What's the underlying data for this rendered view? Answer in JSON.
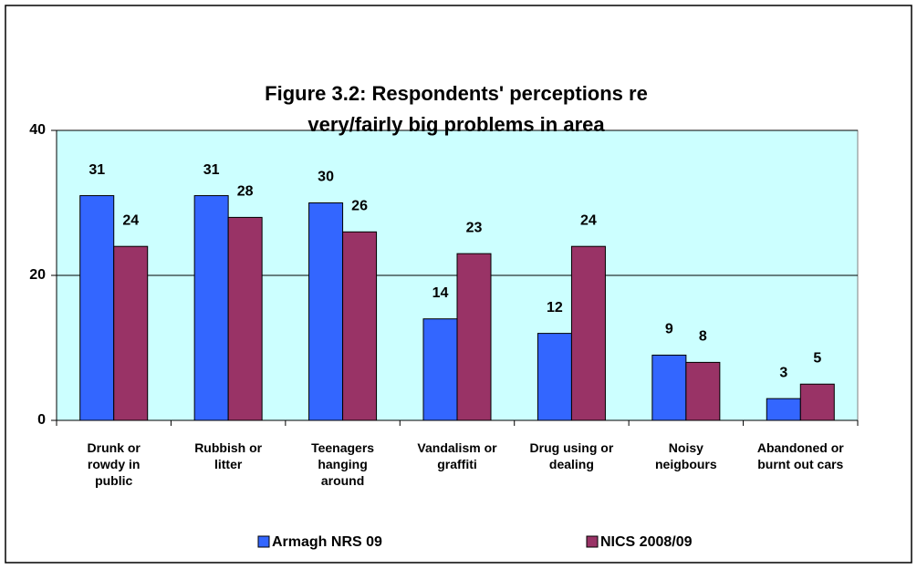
{
  "chart_data": {
    "type": "bar",
    "title": "Figure 3.2: Respondents' perceptions re very/fairly big problems in area",
    "categories": [
      "Drunk or rowdy in public",
      "Rubbish or litter",
      "Teenagers hanging around",
      "Vandalism or graffiti",
      "Drug using or dealing",
      "Noisy neigbours",
      "Abandoned or burnt out cars"
    ],
    "series": [
      {
        "name": "Armagh NRS 09",
        "color": "#3366ff",
        "values": [
          31,
          31,
          30,
          14,
          12,
          9,
          3
        ]
      },
      {
        "name": "NICS 2008/09",
        "color": "#993366",
        "values": [
          24,
          28,
          26,
          23,
          24,
          8,
          5
        ]
      }
    ],
    "ylim": [
      0,
      40
    ],
    "yticks": [
      0,
      20,
      40
    ],
    "grid": true,
    "plot_background": "#ccffff",
    "legend": "bottom"
  }
}
